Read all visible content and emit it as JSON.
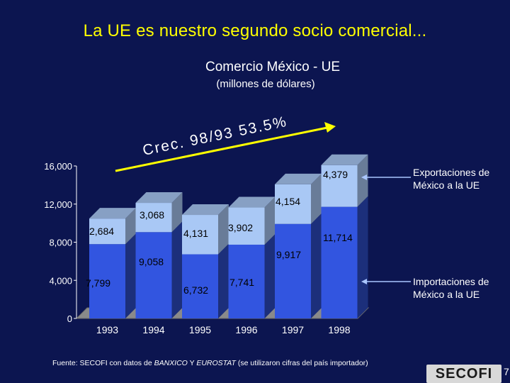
{
  "title": "La UE es nuestro segundo socio comercial...",
  "subtitle": "Comercio México - UE",
  "units": "(millones de dólares)",
  "growth_label": "Crec. 98/93  53.5%",
  "legend": {
    "exports": "Exportaciones de México a la UE",
    "imports": "Importaciones de México a la UE"
  },
  "footnote": {
    "prefix": "Fuente: SECOFI con datos de ",
    "src1": "BANXICO",
    "mid": " Y ",
    "src2": "EUROSTAT",
    "suffix": " (se utilizaron cifras del país importador)"
  },
  "logo_text": "SECOFI",
  "page_number": "7",
  "colors": {
    "background": "#0c1550",
    "imports": "#3255e0",
    "exports": "#a9c8f5",
    "title": "#ffff00",
    "arrow": "#ffff00",
    "growth_text": "#ffffff"
  },
  "chart_data": {
    "type": "bar",
    "stacked": true,
    "categories": [
      "1993",
      "1994",
      "1995",
      "1996",
      "1997",
      "1998"
    ],
    "series": [
      {
        "name": "Importaciones de México a la UE",
        "values": [
          7799,
          9058,
          6732,
          7741,
          9917,
          11714
        ],
        "labels": [
          "7,799",
          "9,058",
          "6,732",
          "7,741",
          "9,917",
          "11,714"
        ]
      },
      {
        "name": "Exportaciones de México a la UE",
        "values": [
          2684,
          3068,
          4131,
          3902,
          4154,
          4379
        ],
        "labels": [
          "2,684",
          "3,068",
          "4,131",
          "3,902",
          "4,154",
          "4,379"
        ]
      }
    ],
    "y_ticks": [
      0,
      4000,
      8000,
      12000,
      16000
    ],
    "y_tick_labels": [
      "0",
      "4,000",
      "8,000",
      "12,000",
      "16,000"
    ],
    "ylim": [
      0,
      16000
    ],
    "grid": false,
    "legend_position": "right"
  }
}
